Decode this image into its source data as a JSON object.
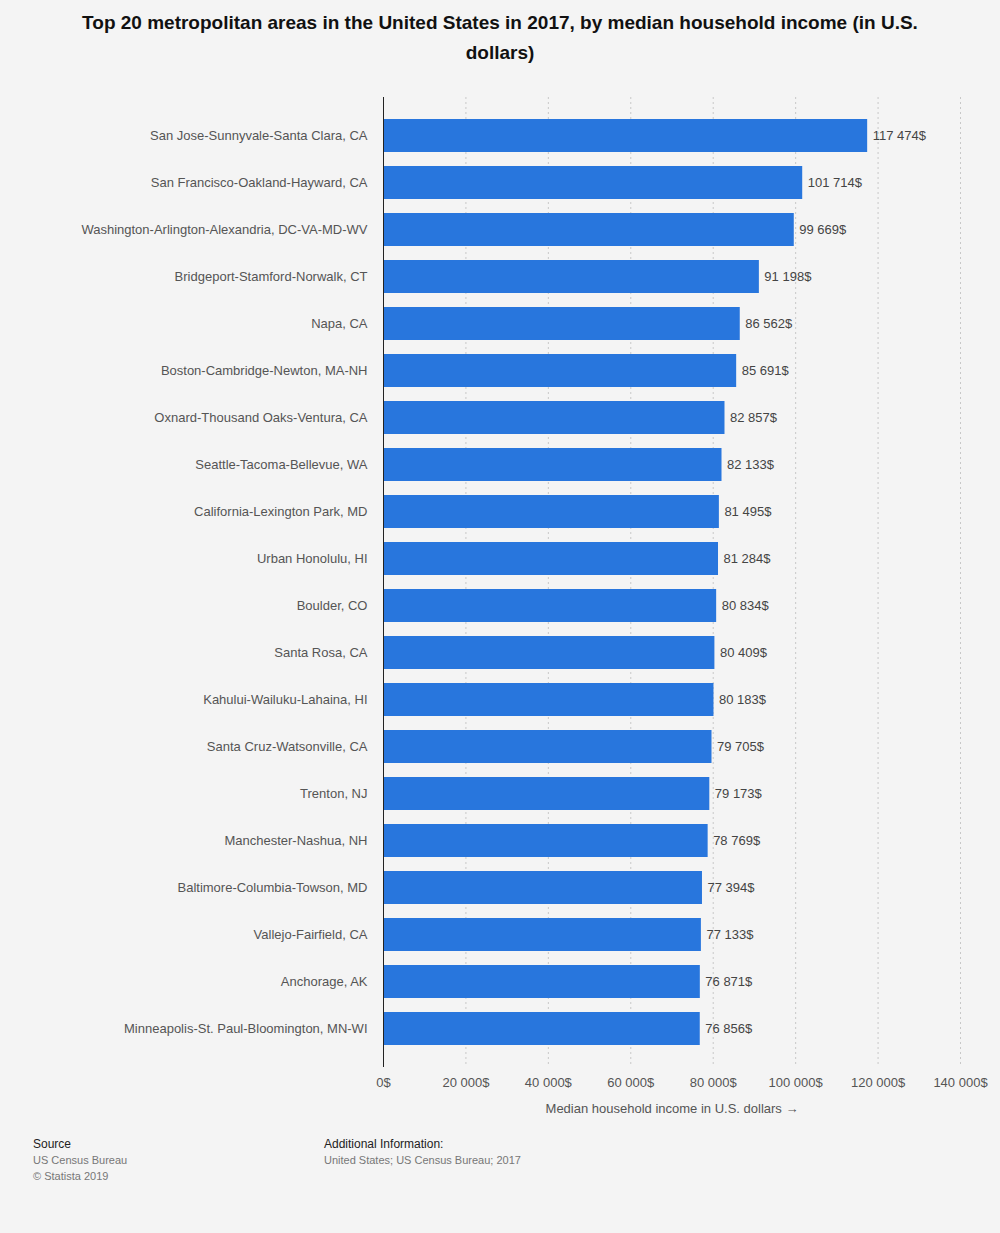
{
  "chart_data": {
    "type": "bar",
    "orientation": "horizontal",
    "title": "Top 20 metropolitan areas in the United States in 2017, by median household income (in U.S. dollars)",
    "x_label": "Median household income in U.S. dollars",
    "categories": [
      "San Jose-Sunnyvale-Santa Clara, CA",
      "San Francisco-Oakland-Hayward, CA",
      "Washington-Arlington-Alexandria, DC-VA-MD-WV",
      "Bridgeport-Stamford-Norwalk, CT",
      "Napa, CA",
      "Boston-Cambridge-Newton, MA-NH",
      "Oxnard-Thousand Oaks-Ventura, CA",
      "Seattle-Tacoma-Bellevue, WA",
      "California-Lexington Park, MD",
      "Urban Honolulu, HI",
      "Boulder, CO",
      "Santa Rosa, CA",
      "Kahului-Wailuku-Lahaina, HI",
      "Santa Cruz-Watsonville, CA",
      "Trenton, NJ",
      "Manchester-Nashua, NH",
      "Baltimore-Columbia-Towson, MD",
      "Vallejo-Fairfield, CA",
      "Anchorage, AK",
      "Minneapolis-St. Paul-Bloomington, MN-WI"
    ],
    "values": [
      117474,
      101714,
      99669,
      91198,
      86562,
      85691,
      82857,
      82133,
      81495,
      81284,
      80834,
      80409,
      80183,
      79705,
      79173,
      78769,
      77394,
      77133,
      76871,
      76856
    ],
    "value_labels": [
      "117 474$",
      "101 714$",
      "99 669$",
      "91 198$",
      "86 562$",
      "85 691$",
      "82 857$",
      "82 133$",
      "81 495$",
      "81 284$",
      "80 834$",
      "80 409$",
      "80 183$",
      "79 705$",
      "79 173$",
      "78 769$",
      "77 394$",
      "77 133$",
      "76 871$",
      "76 856$"
    ],
    "data_labels": true,
    "color": "#2876dd",
    "xlim": [
      0,
      140000
    ],
    "xticks": [
      {
        "value": 0,
        "label": "0$"
      },
      {
        "value": 20000,
        "label": "20 000$"
      },
      {
        "value": 40000,
        "label": "40 000$"
      },
      {
        "value": 60000,
        "label": "60 000$"
      },
      {
        "value": 80000,
        "label": "80 000$"
      },
      {
        "value": 100000,
        "label": "100 000$"
      },
      {
        "value": 120000,
        "label": "120 000$"
      },
      {
        "value": 140000,
        "label": "140 000$"
      }
    ],
    "grid": true,
    "footer": {
      "source_heading": "Source",
      "source": "US Census Bureau",
      "copyright": "© Statista 2019",
      "info_heading": "Additional Information:",
      "info": "United States; US Census Bureau; 2017"
    }
  }
}
